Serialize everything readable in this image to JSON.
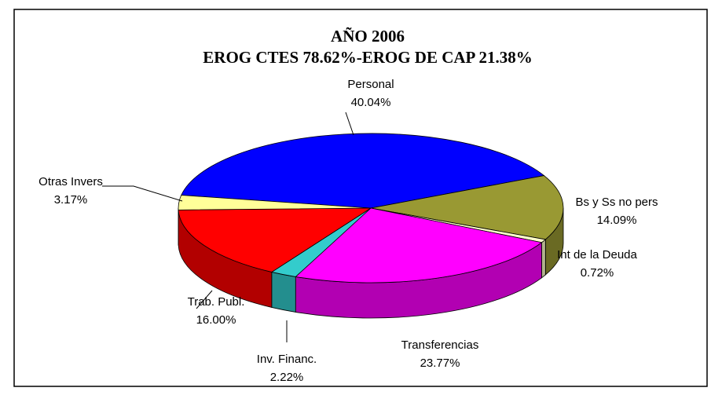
{
  "chart_data": {
    "type": "pie",
    "title": "AÑO 2006",
    "subtitle": "EROG CTES 78.62%-EROG DE CAP 21.38%",
    "categories": [
      "Personal",
      "Bs y Ss no pers",
      "Int de la Deuda",
      "Transferencias",
      "Inv. Financ.",
      "Trab. Publ.",
      "Otras Invers"
    ],
    "values": [
      40.04,
      14.09,
      0.72,
      23.77,
      2.22,
      16.0,
      3.17
    ],
    "value_labels": [
      "40.04%",
      "14.09%",
      "0.72%",
      "23.77%",
      "2.22%",
      "16.00%",
      "3.17%"
    ],
    "colors": [
      "#0000ff",
      "#999933",
      "#ffffcc",
      "#ff00ff",
      "#33cccc",
      "#ff0000",
      "#ffff99"
    ]
  }
}
